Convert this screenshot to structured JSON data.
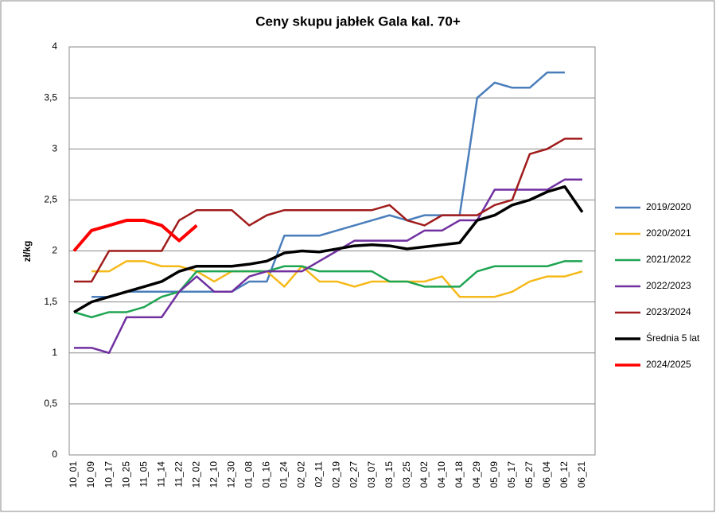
{
  "chart_data": {
    "type": "line",
    "title": "Ceny skupu jabłek Gala kal. 70+",
    "y_label": "zł/kg",
    "categories": [
      "10_01",
      "10_09",
      "10_17",
      "10_25",
      "11_05",
      "11_14",
      "11_22",
      "12_02",
      "12_10",
      "12_30",
      "01_08",
      "01_16",
      "01_24",
      "02_02",
      "02_11",
      "02_19",
      "02_27",
      "03_07",
      "03_15",
      "03_25",
      "04_02",
      "04_10",
      "04_18",
      "04_29",
      "05_09",
      "05_17",
      "05_27",
      "06_04",
      "06_12",
      "06_21"
    ],
    "ylim": [
      0,
      4
    ],
    "yticks": [
      0,
      {
        "value": 0.5,
        "label": "0,5"
      },
      1,
      {
        "value": 1.5,
        "label": "1,5"
      },
      2,
      {
        "value": 2.5,
        "label": "2,5"
      },
      3,
      {
        "value": 3.5,
        "label": "3,5"
      },
      4
    ],
    "grid": true,
    "legend": "right",
    "series": [
      {
        "name": "2019/2020",
        "color": "#4a7ebb",
        "width": 2.5,
        "values": [
          null,
          1.55,
          1.55,
          1.6,
          1.6,
          1.6,
          1.6,
          1.6,
          1.6,
          1.6,
          1.7,
          1.7,
          2.15,
          2.15,
          2.15,
          2.2,
          2.25,
          2.3,
          2.35,
          2.3,
          2.35,
          2.35,
          2.35,
          3.5,
          3.65,
          3.6,
          3.6,
          3.75,
          3.75,
          null
        ]
      },
      {
        "name": "2020/2021",
        "color": "#f6b91a",
        "width": 2.5,
        "values": [
          null,
          1.8,
          1.8,
          1.9,
          1.9,
          1.85,
          1.85,
          1.8,
          1.7,
          1.8,
          1.8,
          1.8,
          1.65,
          1.85,
          1.7,
          1.7,
          1.65,
          1.7,
          1.7,
          1.7,
          1.7,
          1.75,
          1.55,
          1.55,
          1.55,
          1.6,
          1.7,
          1.75,
          1.75,
          1.8
        ]
      },
      {
        "name": "2021/2022",
        "color": "#1fa552",
        "width": 2.5,
        "values": [
          1.4,
          1.35,
          1.4,
          1.4,
          1.45,
          1.55,
          1.6,
          1.8,
          1.8,
          1.8,
          1.8,
          1.8,
          1.85,
          1.85,
          1.8,
          1.8,
          1.8,
          1.8,
          1.7,
          1.7,
          1.65,
          1.65,
          1.65,
          1.8,
          1.85,
          1.85,
          1.85,
          1.85,
          1.9,
          1.9
        ]
      },
      {
        "name": "2022/2023",
        "color": "#7030a0",
        "width": 2.5,
        "values": [
          1.05,
          1.05,
          1.0,
          1.35,
          1.35,
          1.35,
          1.6,
          1.75,
          1.6,
          1.6,
          1.75,
          1.8,
          1.8,
          1.8,
          1.9,
          2.0,
          2.1,
          2.1,
          2.1,
          2.1,
          2.2,
          2.2,
          2.3,
          2.3,
          2.6,
          2.6,
          2.6,
          2.6,
          2.7,
          2.7
        ]
      },
      {
        "name": "2023/2024",
        "color": "#a01c1c",
        "width": 2.5,
        "values": [
          1.7,
          1.7,
          2.0,
          2.0,
          2.0,
          2.0,
          2.3,
          2.4,
          2.4,
          2.4,
          2.25,
          2.35,
          2.4,
          2.4,
          2.4,
          2.4,
          2.4,
          2.4,
          2.45,
          2.3,
          2.25,
          2.35,
          2.35,
          2.35,
          2.45,
          2.5,
          2.95,
          3.0,
          3.1,
          3.1
        ]
      },
      {
        "name": "Średnia 5 lat",
        "color": "#000000",
        "width": 3.5,
        "values": [
          1.4,
          1.5,
          1.55,
          1.6,
          1.65,
          1.7,
          1.8,
          1.85,
          1.85,
          1.85,
          1.87,
          1.9,
          1.98,
          2.0,
          1.99,
          2.02,
          2.05,
          2.06,
          2.05,
          2.02,
          2.04,
          2.06,
          2.08,
          2.3,
          2.35,
          2.45,
          2.5,
          2.58,
          2.63,
          2.38
        ]
      },
      {
        "name": "2024/2025",
        "color": "#ff0000",
        "width": 4,
        "values": [
          2.0,
          2.2,
          2.25,
          2.3,
          2.3,
          2.25,
          2.1,
          2.25,
          null,
          null,
          null,
          null,
          null,
          null,
          null,
          null,
          null,
          null,
          null,
          null,
          null,
          null,
          null,
          null,
          null,
          null,
          null,
          null,
          null,
          null
        ]
      }
    ]
  }
}
